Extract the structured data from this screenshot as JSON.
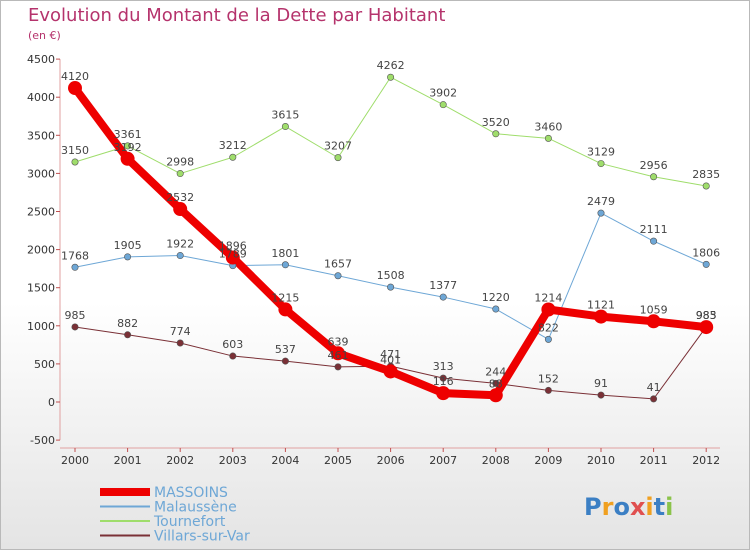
{
  "title": "Evolution du Montant de la Dette par Habitant",
  "subtitle": "(en €)",
  "logo": {
    "text": "Proxiti"
  },
  "chart_data": {
    "type": "line",
    "x": [
      "2000",
      "2001",
      "2002",
      "2003",
      "2004",
      "2005",
      "2006",
      "2007",
      "2008",
      "2009",
      "2010",
      "2011",
      "2012"
    ],
    "ylim": [
      -500,
      4500
    ],
    "yticks": [
      -500,
      0,
      500,
      1000,
      1500,
      2000,
      2500,
      3000,
      3500,
      4000,
      4500
    ],
    "grid": false,
    "legend_position": "bottom-left",
    "series": [
      {
        "name": "MASSOINS",
        "color": "#ee0000",
        "width": 8,
        "values": [
          4120,
          3192,
          2532,
          1896,
          1215,
          639,
          401,
          116,
          88,
          1214,
          1121,
          1059,
          983
        ]
      },
      {
        "name": "Malaussène",
        "color": "#6ea7d6",
        "width": 1,
        "values": [
          1768,
          1905,
          1922,
          1789,
          1801,
          1657,
          1508,
          1377,
          1220,
          822,
          2479,
          2111,
          1806
        ]
      },
      {
        "name": "Tournefort",
        "color": "#9fdd6b",
        "width": 1,
        "values": [
          3150,
          3361,
          2998,
          3212,
          3615,
          3207,
          4262,
          3902,
          3520,
          3460,
          3129,
          2956,
          2835
        ]
      },
      {
        "name": "Villars-sur-Var",
        "color": "#7a3036",
        "width": 1,
        "values": [
          985,
          882,
          774,
          603,
          537,
          461,
          471,
          313,
          244,
          152,
          91,
          41,
          985
        ]
      }
    ]
  }
}
